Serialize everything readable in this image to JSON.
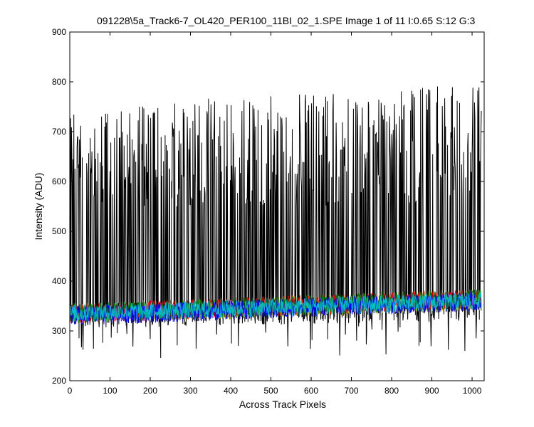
{
  "chart_data": {
    "type": "line",
    "title": "091228\\5a_Track6-7_OL420_PER100_11BI_02_1.SPE  Image 1 of 11  I:0.65  S:12  G:3",
    "xlabel": "Across Track Pixels",
    "ylabel": "Intensity (ADU)",
    "xlim": [
      0,
      1030
    ],
    "ylim": [
      200,
      900
    ],
    "x_ticks": [
      0,
      100,
      200,
      300,
      400,
      500,
      600,
      700,
      800,
      900,
      1000
    ],
    "y_ticks": [
      200,
      300,
      400,
      500,
      600,
      700,
      800,
      900
    ],
    "x_tick_labels": [
      "0",
      "100",
      "200",
      "300",
      "400",
      "500",
      "600",
      "700",
      "800",
      "900",
      "1000"
    ],
    "y_tick_labels": [
      "200",
      "300",
      "400",
      "500",
      "600",
      "700",
      "800",
      "900"
    ],
    "grid": false,
    "n_points": 1024,
    "series": [
      {
        "color": "#000000",
        "baseline_start": 330,
        "baseline_end": 345,
        "peak_typical_low": 550,
        "peak_typical_high": 800,
        "min": 235,
        "max": 810
      },
      {
        "color": "#ff0000",
        "baseline_start": 335,
        "baseline_end": 365,
        "amplitude": 20
      },
      {
        "color": "#008000",
        "baseline_start": 335,
        "baseline_end": 365,
        "amplitude": 20
      },
      {
        "color": "#0000ff",
        "baseline_start": 330,
        "baseline_end": 360,
        "amplitude": 20
      },
      {
        "color": "#00bfbf",
        "baseline_start": 335,
        "baseline_end": 360,
        "amplitude": 18
      },
      {
        "color": "#bfbf00",
        "baseline_start": 330,
        "baseline_end": 355,
        "amplitude": 15
      }
    ]
  }
}
